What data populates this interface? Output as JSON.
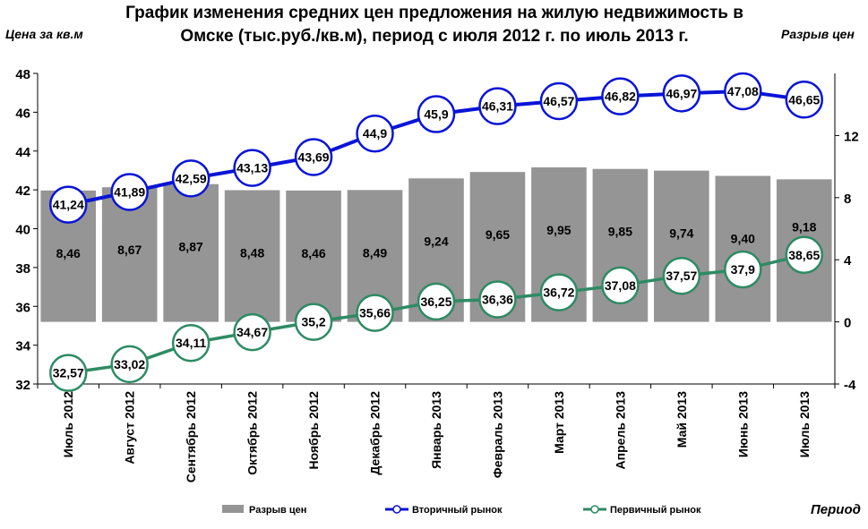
{
  "chart_data": {
    "type": "bar+line",
    "title_line1": "График изменения средних цен предложения на жилую недвижимость в",
    "title_line2": "Омске (тыс.руб./кв.м), период с июля 2012 г. по июль 2013 г.",
    "ylabel_left": "Цена за кв.м",
    "ylabel_right": "Разрыв цен",
    "xlabel": "Период",
    "ylim_left": [
      32,
      48
    ],
    "yticks_left": [
      "32",
      "34",
      "36",
      "38",
      "40",
      "42",
      "44",
      "46",
      "48"
    ],
    "ylim_right": [
      -4,
      16
    ],
    "yticks_right": [
      "-4",
      "0",
      "4",
      "8",
      "12"
    ],
    "categories": [
      "Июль 2012",
      "Август 2012",
      "Сентябрь 2012",
      "Октябрь 2012",
      "Ноябрь 2012",
      "Декабрь 2012",
      "Январь 2013",
      "Февраль 2013",
      "Март 2013",
      "Апрель 2013",
      "Май 2013",
      "Июнь 2013",
      "Июль 2013"
    ],
    "series": [
      {
        "name": "Разрыв цен",
        "kind": "bar",
        "axis": "right",
        "color": "#959595",
        "values": [
          8.46,
          8.67,
          8.87,
          8.48,
          8.46,
          8.49,
          9.24,
          9.65,
          9.95,
          9.85,
          9.74,
          9.4,
          9.18
        ],
        "labels": [
          "8,46",
          "8,67",
          "8,87",
          "8,48",
          "8,46",
          "8,49",
          "9,24",
          "9,65",
          "9,95",
          "9,85",
          "9,74",
          "9,40",
          "9,18"
        ]
      },
      {
        "name": "Вторичный рынок",
        "kind": "line",
        "axis": "left",
        "color": "#0a14d6",
        "values": [
          41.24,
          41.89,
          42.59,
          43.13,
          43.69,
          44.9,
          45.9,
          46.31,
          46.57,
          46.82,
          46.97,
          47.08,
          46.65
        ],
        "labels": [
          "41,24",
          "41,89",
          "42,59",
          "43,13",
          "43,69",
          "44,9",
          "45,9",
          "46,31",
          "46,57",
          "46,82",
          "46,97",
          "47,08",
          "46,65"
        ]
      },
      {
        "name": "Первичный рынок",
        "kind": "line",
        "axis": "left",
        "color": "#2e8b64",
        "values": [
          32.57,
          33.02,
          34.11,
          34.67,
          35.2,
          35.66,
          36.25,
          36.36,
          36.72,
          37.08,
          37.57,
          37.9,
          38.65
        ],
        "labels": [
          "32,57",
          "33,02",
          "34,11",
          "34,67",
          "35,2",
          "35,66",
          "36,25",
          "36,36",
          "36,72",
          "37,08",
          "37,57",
          "37,9",
          "38,65"
        ]
      }
    ],
    "legend_position": "bottom"
  }
}
